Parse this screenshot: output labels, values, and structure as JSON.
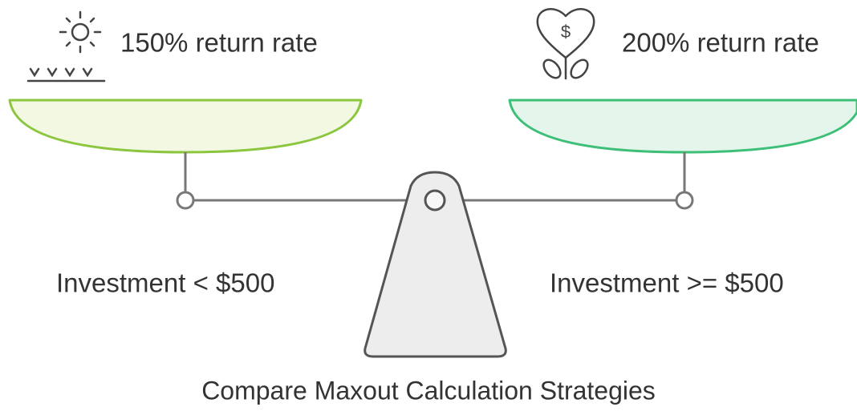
{
  "left": {
    "label": "150% return rate",
    "condition": "Investment < $500"
  },
  "right": {
    "label": "200% return rate",
    "condition": "Investment >= $500",
    "icon_symbol": "$"
  },
  "title": "Compare Maxout Calculation Strategies"
}
